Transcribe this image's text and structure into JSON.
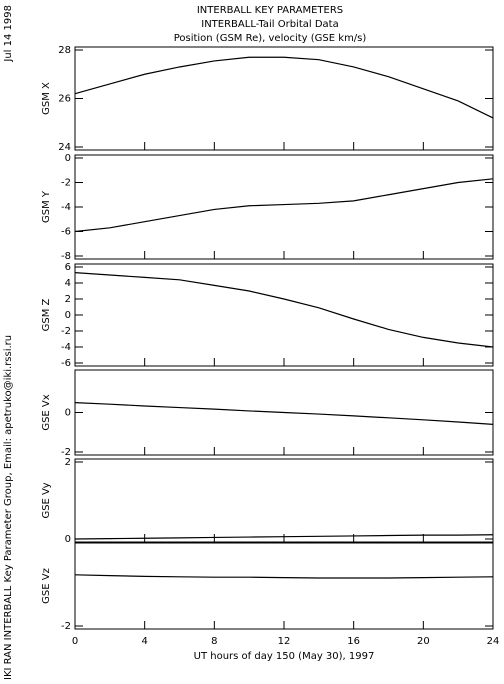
{
  "header": {
    "lines": [
      "INTERBALL KEY PARAMETERS",
      "INTERBALL-Tail Orbital Data",
      "Position (GSM Re), velocity (GSE km/s)"
    ]
  },
  "date": "Jul 14 1998",
  "credit": "IKI RAN INTERBALL Key Parameter Group, Email: apetruko@iki.rssi.ru",
  "chart_data": [
    {
      "type": "line",
      "y_label": "GSM X",
      "x": [
        0,
        2,
        4,
        6,
        8,
        10,
        12,
        14,
        16,
        18,
        20,
        22,
        24
      ],
      "xlim": [
        0,
        24
      ],
      "xticks": [
        0,
        4,
        8,
        12,
        16,
        20,
        24
      ],
      "series": [
        {
          "color": "#000000",
          "values": [
            26.2,
            26.6,
            27.0,
            27.3,
            27.55,
            27.7,
            27.7,
            27.6,
            27.3,
            26.9,
            26.4,
            25.9,
            25.2
          ]
        }
      ],
      "ylim": [
        24,
        28
      ],
      "yticks": [
        24,
        26,
        28
      ]
    },
    {
      "type": "line",
      "y_label": "GSM Y",
      "x": [
        0,
        2,
        4,
        6,
        8,
        10,
        12,
        14,
        16,
        18,
        20,
        22,
        24
      ],
      "xlim": [
        0,
        24
      ],
      "xticks": [
        0,
        4,
        8,
        12,
        16,
        20,
        24
      ],
      "series": [
        {
          "color": "#000000",
          "values": [
            -6.0,
            -5.7,
            -5.2,
            -4.7,
            -4.2,
            -3.9,
            -3.8,
            -3.7,
            -3.5,
            -3.0,
            -2.5,
            -2.0,
            -1.7
          ]
        }
      ],
      "ylim": [
        -8,
        0
      ],
      "yticks": [
        -8,
        -6,
        -4,
        -2,
        0
      ]
    },
    {
      "type": "line",
      "y_label": "GSM Z",
      "x": [
        0,
        2,
        4,
        6,
        8,
        10,
        12,
        14,
        16,
        18,
        20,
        22,
        24
      ],
      "xlim": [
        0,
        24
      ],
      "xticks": [
        0,
        4,
        8,
        12,
        16,
        20,
        24
      ],
      "series": [
        {
          "color": "#000000",
          "values": [
            5.3,
            5.0,
            4.7,
            4.4,
            3.7,
            3.0,
            2.0,
            0.9,
            -0.5,
            -1.8,
            -2.8,
            -3.5,
            -4.0
          ]
        }
      ],
      "ylim": [
        -6,
        6
      ],
      "yticks": [
        -6,
        -4,
        -2,
        0,
        2,
        4,
        6
      ]
    },
    {
      "type": "line",
      "y_label": "GSE Vx",
      "x": [
        0,
        2,
        4,
        6,
        8,
        10,
        12,
        14,
        16,
        18,
        20,
        22,
        24
      ],
      "xlim": [
        0,
        24
      ],
      "xticks": [
        0,
        4,
        8,
        12,
        16,
        20,
        24
      ],
      "series": [
        {
          "color": "#000000",
          "values": [
            0.5,
            0.42,
            0.33,
            0.25,
            0.17,
            0.08,
            0,
            -0.08,
            -0.17,
            -0.27,
            -0.37,
            -0.48,
            -0.6
          ]
        }
      ],
      "ylim": [
        -2,
        2
      ],
      "yticks": [
        -2,
        0
      ]
    },
    {
      "type": "line",
      "y_label": "GSE Vy",
      "x": [
        0,
        2,
        4,
        6,
        8,
        10,
        12,
        14,
        16,
        18,
        20,
        22,
        24
      ],
      "xlim": [
        0,
        24
      ],
      "xticks": [
        0,
        4,
        8,
        12,
        16,
        20,
        24
      ],
      "series": [
        {
          "color": "#000000",
          "values": [
            0.0,
            0.01,
            0.02,
            0.03,
            0.04,
            0.05,
            0.06,
            0.07,
            0.08,
            0.09,
            0.1,
            0.1,
            0.11
          ]
        }
      ],
      "ylim": [
        0,
        2
      ],
      "yticks": [
        0,
        2
      ]
    },
    {
      "type": "line",
      "y_label": "GSE Vz",
      "x_label": "UT hours of day 150 (May 30), 1997",
      "x": [
        0,
        2,
        4,
        6,
        8,
        10,
        12,
        14,
        16,
        18,
        20,
        22,
        24
      ],
      "xlim": [
        0,
        24
      ],
      "xticks": [
        0,
        4,
        8,
        12,
        16,
        20,
        24
      ],
      "series": [
        {
          "color": "#000000",
          "values": [
            -0.72,
            -0.74,
            -0.76,
            -0.77,
            -0.78,
            -0.78,
            -0.79,
            -0.8,
            -0.8,
            -0.8,
            -0.79,
            -0.78,
            -0.77
          ]
        }
      ],
      "ylim": [
        -2,
        0
      ],
      "yticks": [
        -2
      ]
    }
  ]
}
